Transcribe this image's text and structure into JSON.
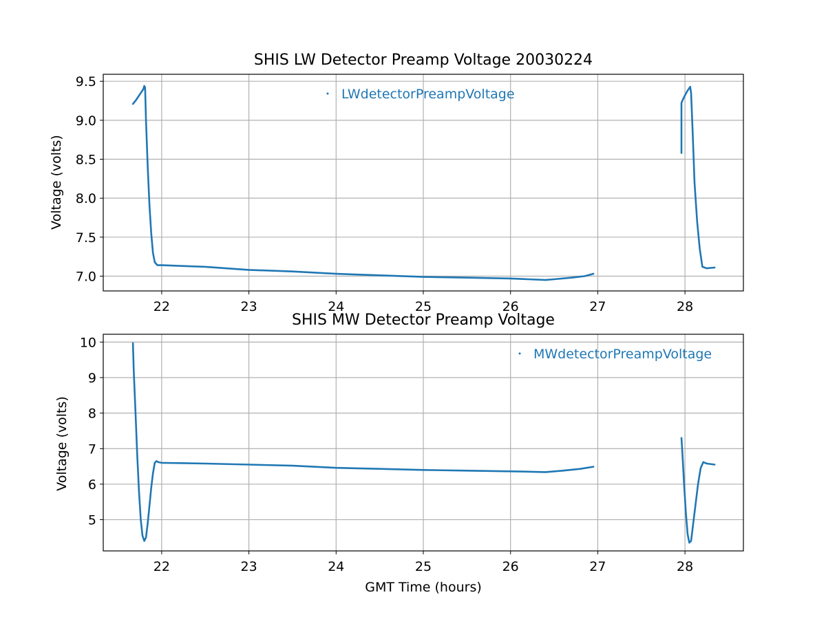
{
  "chart_data": [
    {
      "type": "scatter",
      "title": "SHIS LW Detector Preamp Voltage 20030224",
      "xlabel": "",
      "ylabel": "Voltage (volts)",
      "xlim": [
        21.33,
        28.67
      ],
      "ylim": [
        6.81,
        9.59
      ],
      "x_ticks": [
        22,
        23,
        24,
        25,
        26,
        27,
        28
      ],
      "y_ticks": [
        7.0,
        7.5,
        8.0,
        8.5,
        9.0,
        9.5
      ],
      "x_tick_labels": [
        "22",
        "23",
        "24",
        "25",
        "26",
        "27",
        "28"
      ],
      "y_tick_labels": [
        "7.0",
        "7.5",
        "8.0",
        "8.5",
        "9.0",
        "9.5"
      ],
      "grid": true,
      "legend_position": "top-center",
      "series": [
        {
          "name": "LWdetectorPreampVoltage",
          "color": "#1f77b4",
          "segments": [
            {
              "x": [
                21.67,
                21.7,
                21.73,
                21.76,
                21.79,
                21.8,
                21.81,
                21.82,
                21.84,
                21.86,
                21.88,
                21.9,
                21.92,
                21.95,
                22.0,
                22.5,
                23.0,
                23.5,
                24.0,
                24.5,
                25.0,
                25.5,
                26.0,
                26.2,
                26.4,
                26.5,
                26.7,
                26.85,
                26.95
              ],
              "y": [
                9.21,
                9.25,
                9.3,
                9.35,
                9.4,
                9.44,
                9.42,
                9.0,
                8.4,
                7.9,
                7.55,
                7.3,
                7.18,
                7.14,
                7.14,
                7.12,
                7.08,
                7.06,
                7.03,
                7.01,
                6.99,
                6.98,
                6.97,
                6.96,
                6.95,
                6.96,
                6.98,
                7.0,
                7.03
              ]
            },
            {
              "x": [
                27.96,
                27.96,
                27.97,
                28.0,
                28.03,
                28.06,
                28.07,
                28.09,
                28.11,
                28.14,
                28.17,
                28.2,
                28.25,
                28.34
              ],
              "y": [
                8.58,
                9.22,
                9.25,
                9.32,
                9.38,
                9.43,
                9.35,
                8.8,
                8.2,
                7.7,
                7.35,
                7.12,
                7.1,
                7.11
              ]
            }
          ]
        }
      ]
    },
    {
      "type": "scatter",
      "title": "SHIS MW Detector Preamp Voltage",
      "xlabel": "GMT Time (hours)",
      "ylabel": "Voltage (volts)",
      "xlim": [
        21.33,
        28.67
      ],
      "ylim": [
        4.12,
        10.22
      ],
      "x_ticks": [
        22,
        23,
        24,
        25,
        26,
        27,
        28
      ],
      "y_ticks": [
        5,
        6,
        7,
        8,
        9,
        10
      ],
      "x_tick_labels": [
        "22",
        "23",
        "24",
        "25",
        "26",
        "27",
        "28"
      ],
      "y_tick_labels": [
        "5",
        "6",
        "7",
        "8",
        "9",
        "10"
      ],
      "grid": true,
      "legend_position": "top-right",
      "series": [
        {
          "name": "MWdetectorPreampVoltage",
          "color": "#1f77b4",
          "segments": [
            {
              "x": [
                21.67,
                21.68,
                21.7,
                21.72,
                21.74,
                21.76,
                21.78,
                21.8,
                21.82,
                21.84,
                21.86,
                21.88,
                21.9,
                21.92,
                21.94,
                21.96,
                22.0,
                22.5,
                23.0,
                23.5,
                24.0,
                24.5,
                25.0,
                25.5,
                26.0,
                26.2,
                26.4,
                26.6,
                26.8,
                26.95
              ],
              "y": [
                9.97,
                9.2,
                8.0,
                6.8,
                5.8,
                5.0,
                4.55,
                4.4,
                4.5,
                4.9,
                5.4,
                5.9,
                6.3,
                6.6,
                6.65,
                6.62,
                6.6,
                6.58,
                6.55,
                6.52,
                6.46,
                6.43,
                6.4,
                6.38,
                6.36,
                6.35,
                6.34,
                6.38,
                6.43,
                6.49
              ]
            },
            {
              "x": [
                27.96,
                27.97,
                27.99,
                28.01,
                28.03,
                28.05,
                28.07,
                28.09,
                28.12,
                28.15,
                28.18,
                28.21,
                28.25,
                28.34
              ],
              "y": [
                7.3,
                6.9,
                6.0,
                5.2,
                4.6,
                4.35,
                4.4,
                4.8,
                5.4,
                6.0,
                6.45,
                6.62,
                6.58,
                6.55
              ]
            }
          ]
        }
      ]
    }
  ]
}
